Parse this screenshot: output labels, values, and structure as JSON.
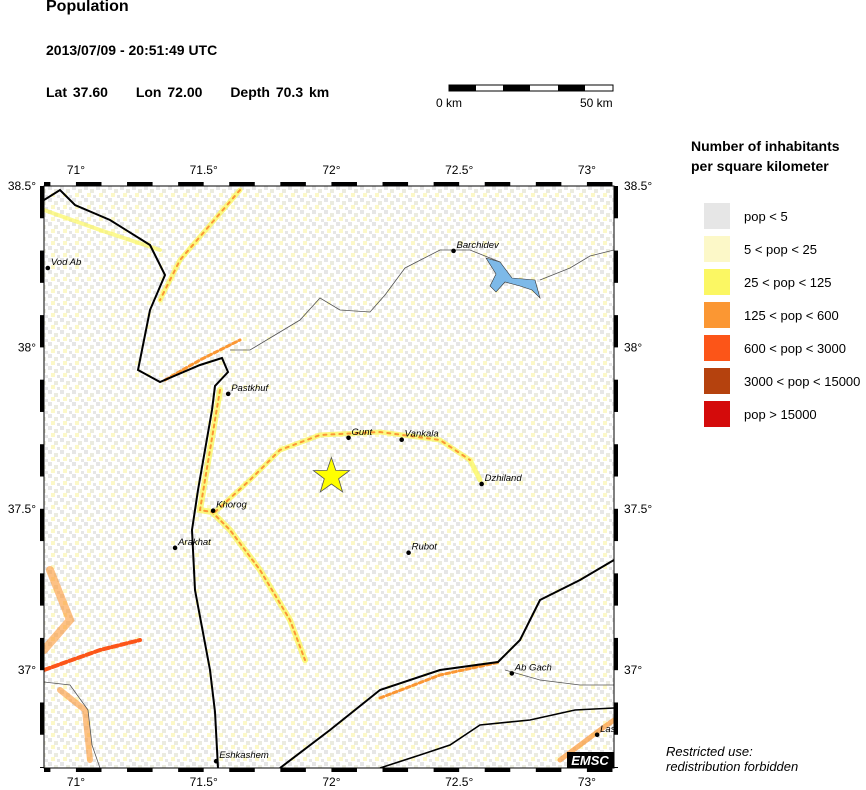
{
  "header": {
    "title": "Population",
    "datetime": "2013/07/09 - 20:51:49 UTC",
    "lat_label": "Lat 37.60",
    "lon_label": "Lon  72.00",
    "depth_label": "Depth  70.3 km"
  },
  "scale_bar": {
    "start_label": "0 km",
    "end_label": "50 km"
  },
  "map": {
    "lon_range": [
      70.875,
      73.106
    ],
    "lat_range": [
      36.697,
      38.5
    ],
    "lon_ticks": [
      {
        "value": 71,
        "label": "71°"
      },
      {
        "value": 71.5,
        "label": "71.5°"
      },
      {
        "value": 72,
        "label": "72°"
      },
      {
        "value": 72.5,
        "label": "72.5°"
      },
      {
        "value": 73,
        "label": "73°"
      }
    ],
    "lat_ticks": [
      {
        "value": 38.5,
        "label": "38.5°"
      },
      {
        "value": 38,
        "label": "38°"
      },
      {
        "value": 37.5,
        "label": "37.5°"
      },
      {
        "value": 37,
        "label": "37°"
      }
    ],
    "epicenter": {
      "lat": 37.6,
      "lon": 72.0,
      "color": "#ffff00",
      "icon": "star-icon"
    },
    "towns": [
      {
        "name": "Vod Ab",
        "lon": 70.89,
        "lat": 38.246
      },
      {
        "name": "Barchidev",
        "lon": 72.478,
        "lat": 38.299
      },
      {
        "name": "Pastkhuf",
        "lon": 71.596,
        "lat": 37.856
      },
      {
        "name": "Gunt",
        "lon": 72.067,
        "lat": 37.72
      },
      {
        "name": "Vankala",
        "lon": 72.275,
        "lat": 37.714
      },
      {
        "name": "Dzhiland",
        "lon": 72.588,
        "lat": 37.577
      },
      {
        "name": "Khorog",
        "lon": 71.537,
        "lat": 37.494
      },
      {
        "name": "Arakhat",
        "lon": 71.388,
        "lat": 37.379
      },
      {
        "name": "Rubot",
        "lon": 72.302,
        "lat": 37.364
      },
      {
        "name": "Ab Gach",
        "lon": 72.706,
        "lat": 36.99
      },
      {
        "name": "Eshkashem",
        "lon": 71.549,
        "lat": 36.718
      },
      {
        "name": "Lasi",
        "lon": 73.04,
        "lat": 36.8
      }
    ],
    "logo": "EMSC",
    "lake_color": "#7db9e8"
  },
  "legend": {
    "title_line1": "Number of inhabitants",
    "title_line2": "per square kilometer",
    "items": [
      {
        "label": "pop < 5",
        "color": "#e6e6e6"
      },
      {
        "label": "5 < pop < 25",
        "color": "#fcf8c8"
      },
      {
        "label": "25 < pop < 125",
        "color": "#fbf763"
      },
      {
        "label": "125 < pop < 600",
        "color": "#fb9733"
      },
      {
        "label": "600 < pop < 3000",
        "color": "#fc5518"
      },
      {
        "label": "3000 < pop < 15000",
        "color": "#b5420e"
      },
      {
        "label": "pop > 15000",
        "color": "#d40b0b"
      }
    ]
  },
  "footer": {
    "line1": "Restricted use:",
    "line2": "redistribution forbidden"
  }
}
